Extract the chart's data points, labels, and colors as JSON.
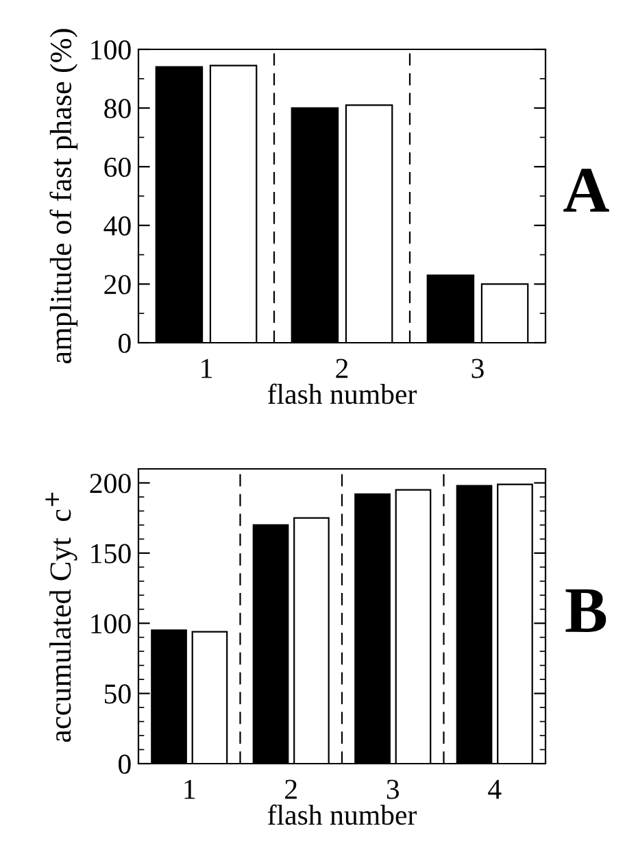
{
  "chart_data": [
    {
      "type": "bar",
      "x": [
        1,
        2,
        3
      ],
      "xlim": [
        0.5,
        3.5
      ],
      "xticks": [
        1,
        2,
        3
      ],
      "xlabel": "flash number",
      "ylabel": "amplitude of fast phase (%)",
      "ylim": [
        0,
        100
      ],
      "yticks": [
        0,
        {
          "value": 10,
          "label": null
        },
        20,
        {
          "value": 30,
          "label": null
        },
        40,
        {
          "value": 50,
          "label": null
        },
        60,
        {
          "value": 70,
          "label": null
        },
        80,
        {
          "value": 90,
          "label": null
        },
        100
      ],
      "series": [
        {
          "color": "#000000",
          "values": [
            94,
            80,
            23
          ]
        },
        {
          "color": "#ffffff",
          "values": [
            94.5,
            81,
            20
          ]
        }
      ],
      "ref_lines": [
        {
          "axis": "x",
          "value": 1.5,
          "line_style": "dashed"
        },
        {
          "axis": "x",
          "value": 2.5,
          "line_style": "dashed"
        }
      ],
      "annotations": [
        "A"
      ],
      "grid": false,
      "legend": false
    },
    {
      "type": "bar",
      "x": [
        1,
        2,
        3,
        4
      ],
      "xlim": [
        0.5,
        4.5
      ],
      "xticks": [
        1,
        2,
        3,
        4
      ],
      "xlabel": "flash number",
      "ylabel": "accumulated Cyt  c$^{+}$",
      "ylim": [
        0,
        210
      ],
      "yticks": [
        0,
        {
          "value": 10,
          "label": null
        },
        {
          "value": 20,
          "label": null
        },
        {
          "value": 30,
          "label": null
        },
        {
          "value": 40,
          "label": null
        },
        50,
        {
          "value": 60,
          "label": null
        },
        {
          "value": 70,
          "label": null
        },
        {
          "value": 80,
          "label": null
        },
        {
          "value": 90,
          "label": null
        },
        100,
        {
          "value": 110,
          "label": null
        },
        {
          "value": 120,
          "label": null
        },
        {
          "value": 130,
          "label": null
        },
        {
          "value": 140,
          "label": null
        },
        150,
        {
          "value": 160,
          "label": null
        },
        {
          "value": 170,
          "label": null
        },
        {
          "value": 180,
          "label": null
        },
        {
          "value": 190,
          "label": null
        },
        200
      ],
      "series": [
        {
          "color": "#000000",
          "values": [
            95,
            170,
            192,
            198
          ]
        },
        {
          "color": "#ffffff",
          "values": [
            94,
            175,
            195,
            199
          ]
        }
      ],
      "ref_lines": [
        {
          "axis": "x",
          "value": 1.5,
          "line_style": "dashed"
        },
        {
          "axis": "x",
          "value": 2.5,
          "line_style": "dashed"
        },
        {
          "axis": "x",
          "value": 3.5,
          "line_style": "dashed"
        }
      ],
      "annotations": [
        "B"
      ],
      "grid": false,
      "legend": false
    }
  ]
}
